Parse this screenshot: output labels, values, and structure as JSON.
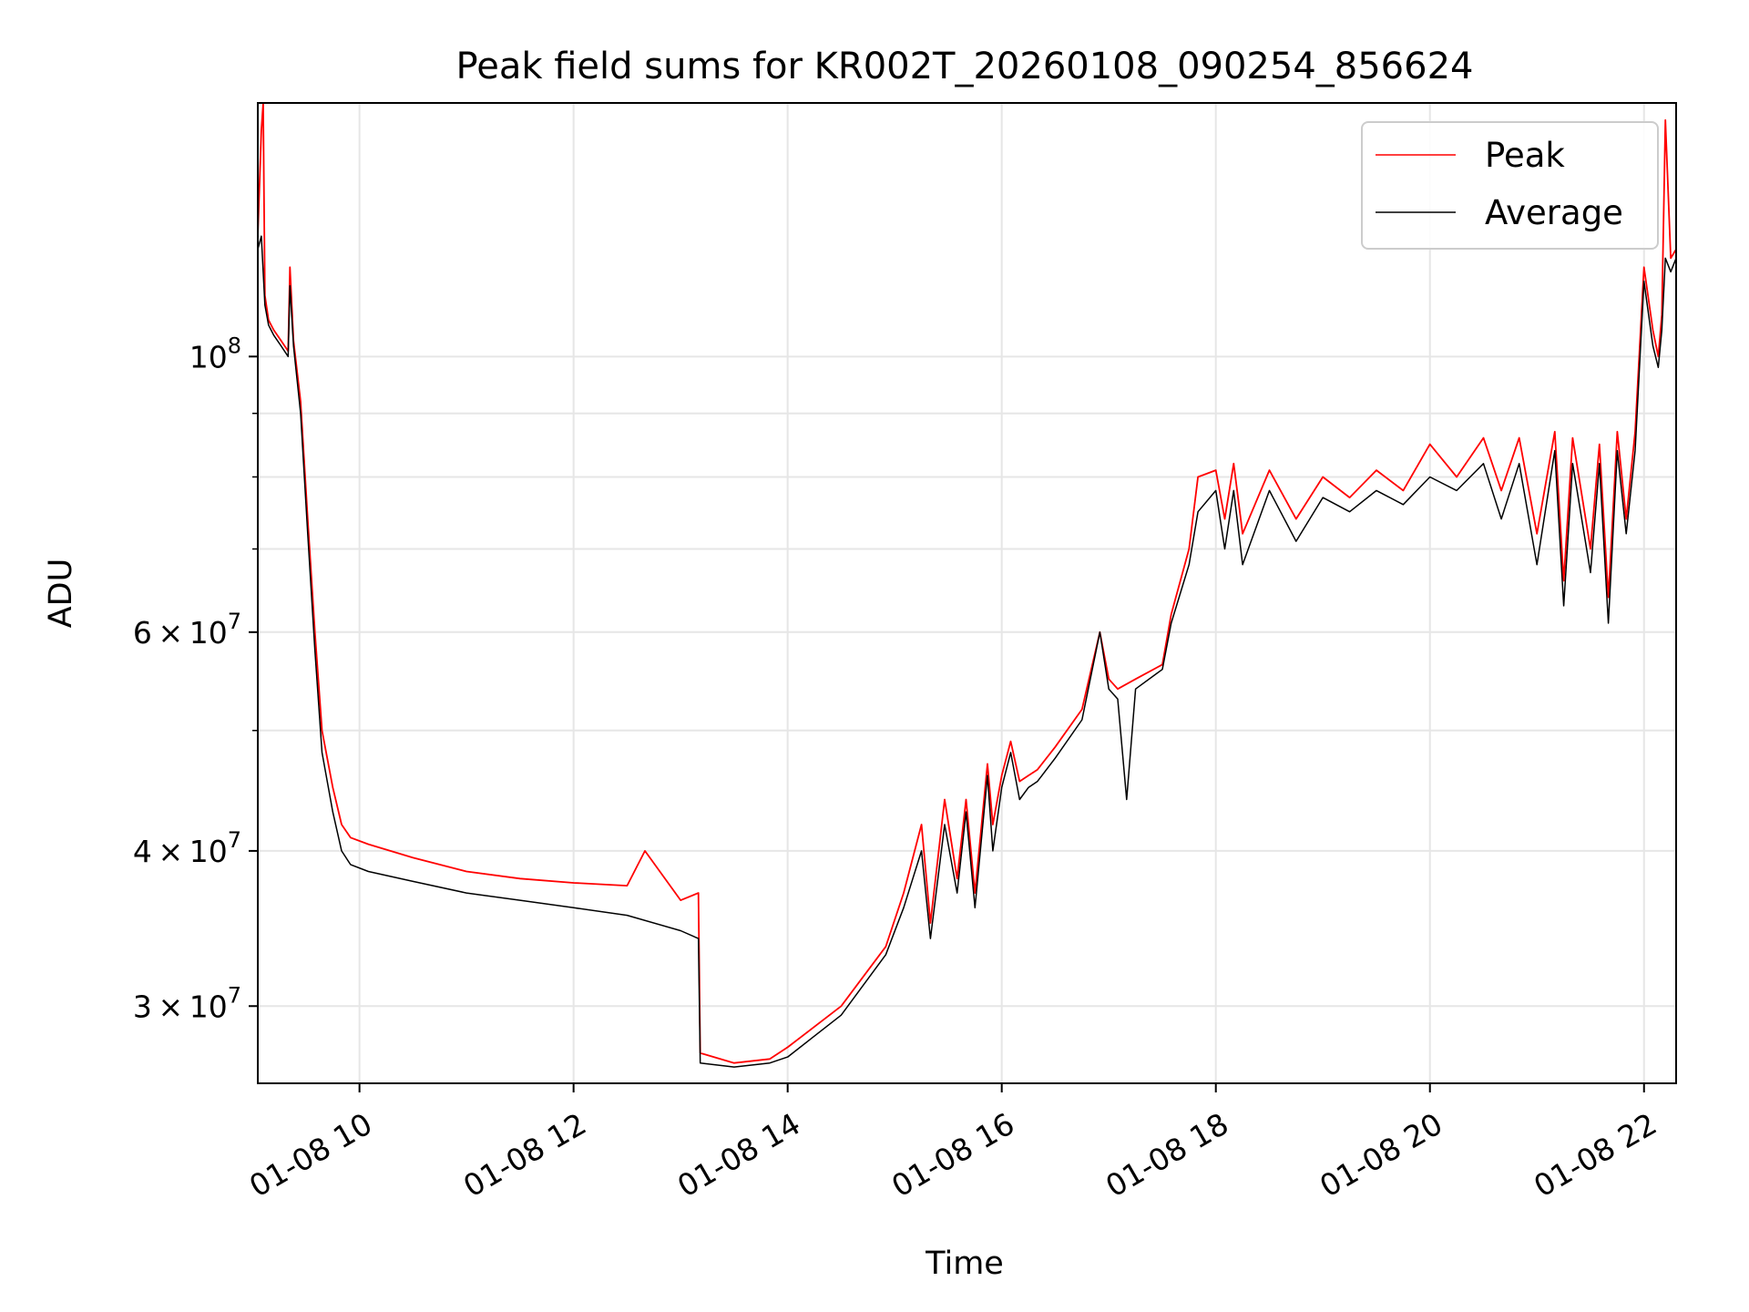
{
  "chart_data": {
    "type": "line",
    "title": "Peak field sums for KR002T_20260108_090254_856624",
    "xlabel": "Time",
    "ylabel": "ADU",
    "y_scale": "log",
    "x_range": [
      "2026-01-08 09:03",
      "2026-01-08 22:18"
    ],
    "ylim": [
      26000000,
      160000000
    ],
    "grid": true,
    "legend_position": "top-right",
    "x_ticks": [
      {
        "value": "2026-01-08 10:00",
        "label": "01-08 10"
      },
      {
        "value": "2026-01-08 12:00",
        "label": "01-08 12"
      },
      {
        "value": "2026-01-08 14:00",
        "label": "01-08 14"
      },
      {
        "value": "2026-01-08 16:00",
        "label": "01-08 16"
      },
      {
        "value": "2026-01-08 18:00",
        "label": "01-08 18"
      },
      {
        "value": "2026-01-08 20:00",
        "label": "01-08 20"
      },
      {
        "value": "2026-01-08 22:00",
        "label": "01-08 22"
      }
    ],
    "y_ticks": [
      {
        "value": 30000000,
        "mantissa": "3",
        "times": "×",
        "base": "10",
        "exp": "7"
      },
      {
        "value": 40000000,
        "mantissa": "4",
        "times": "×",
        "base": "10",
        "exp": "7"
      },
      {
        "value": 60000000,
        "mantissa": "6",
        "times": "×",
        "base": "10",
        "exp": "7"
      },
      {
        "value": 100000000,
        "mantissa": "",
        "times": "",
        "base": "10",
        "exp": "8"
      }
    ],
    "y_minor_ticks": [
      50000000,
      70000000,
      80000000,
      90000000
    ],
    "series": [
      {
        "name": "Peak",
        "color": "#ff0000",
        "x": [
          "2026-01-08 09:03",
          "2026-01-08 09:05",
          "2026-01-08 09:06",
          "2026-01-08 09:07",
          "2026-01-08 09:09",
          "2026-01-08 09:12",
          "2026-01-08 09:16",
          "2026-01-08 09:20",
          "2026-01-08 09:21",
          "2026-01-08 09:23",
          "2026-01-08 09:27",
          "2026-01-08 09:31",
          "2026-01-08 09:35",
          "2026-01-08 09:39",
          "2026-01-08 09:45",
          "2026-01-08 09:50",
          "2026-01-08 09:55",
          "2026-01-08 10:05",
          "2026-01-08 10:30",
          "2026-01-08 11:00",
          "2026-01-08 11:30",
          "2026-01-08 12:00",
          "2026-01-08 12:30",
          "2026-01-08 12:40",
          "2026-01-08 13:00",
          "2026-01-08 13:10",
          "2026-01-08 13:11",
          "2026-01-08 13:30",
          "2026-01-08 13:50",
          "2026-01-08 14:00",
          "2026-01-08 14:30",
          "2026-01-08 14:55",
          "2026-01-08 15:05",
          "2026-01-08 15:15",
          "2026-01-08 15:20",
          "2026-01-08 15:28",
          "2026-01-08 15:35",
          "2026-01-08 15:40",
          "2026-01-08 15:45",
          "2026-01-08 15:52",
          "2026-01-08 15:55",
          "2026-01-08 16:00",
          "2026-01-08 16:05",
          "2026-01-08 16:10",
          "2026-01-08 16:15",
          "2026-01-08 16:20",
          "2026-01-08 16:30",
          "2026-01-08 16:45",
          "2026-01-08 16:55",
          "2026-01-08 17:00",
          "2026-01-08 17:05",
          "2026-01-08 17:15",
          "2026-01-08 17:30",
          "2026-01-08 17:35",
          "2026-01-08 17:45",
          "2026-01-08 17:50",
          "2026-01-08 18:00",
          "2026-01-08 18:05",
          "2026-01-08 18:10",
          "2026-01-08 18:15",
          "2026-01-08 18:30",
          "2026-01-08 18:45",
          "2026-01-08 19:00",
          "2026-01-08 19:15",
          "2026-01-08 19:30",
          "2026-01-08 19:45",
          "2026-01-08 20:00",
          "2026-01-08 20:15",
          "2026-01-08 20:30",
          "2026-01-08 20:40",
          "2026-01-08 20:50",
          "2026-01-08 21:00",
          "2026-01-08 21:10",
          "2026-01-08 21:15",
          "2026-01-08 21:20",
          "2026-01-08 21:30",
          "2026-01-08 21:35",
          "2026-01-08 21:40",
          "2026-01-08 21:45",
          "2026-01-08 21:50",
          "2026-01-08 21:55",
          "2026-01-08 22:00",
          "2026-01-08 22:05",
          "2026-01-08 22:08",
          "2026-01-08 22:10",
          "2026-01-08 22:12",
          "2026-01-08 22:15",
          "2026-01-08 22:18"
        ],
        "y": [
          125000000,
          152000000,
          160000000,
          112000000,
          107000000,
          105000000,
          103000000,
          101000000,
          118000000,
          103000000,
          92000000,
          74000000,
          60000000,
          50000000,
          45000000,
          42000000,
          41000000,
          40500000,
          39500000,
          38500000,
          38000000,
          37700000,
          37500000,
          40000000,
          36500000,
          37000000,
          27500000,
          27000000,
          27200000,
          27800000,
          30000000,
          33500000,
          37000000,
          42000000,
          35000000,
          44000000,
          38000000,
          44000000,
          37000000,
          47000000,
          42000000,
          46000000,
          49000000,
          45500000,
          46000000,
          46500000,
          48500000,
          52000000,
          60000000,
          55000000,
          54000000,
          55000000,
          56500000,
          62000000,
          70000000,
          80000000,
          81000000,
          74000000,
          82000000,
          72000000,
          81000000,
          74000000,
          80000000,
          77000000,
          81000000,
          78000000,
          85000000,
          80000000,
          86000000,
          78000000,
          86000000,
          72000000,
          87000000,
          66000000,
          86000000,
          70000000,
          85000000,
          64000000,
          87000000,
          74000000,
          87000000,
          118000000,
          105000000,
          100000000,
          108000000,
          155000000,
          120000000,
          122000000
        ]
      },
      {
        "name": "Average",
        "color": "#000000",
        "x": [
          "2026-01-08 09:03",
          "2026-01-08 09:05",
          "2026-01-08 09:07",
          "2026-01-08 09:09",
          "2026-01-08 09:12",
          "2026-01-08 09:16",
          "2026-01-08 09:20",
          "2026-01-08 09:21",
          "2026-01-08 09:23",
          "2026-01-08 09:27",
          "2026-01-08 09:31",
          "2026-01-08 09:35",
          "2026-01-08 09:39",
          "2026-01-08 09:45",
          "2026-01-08 09:50",
          "2026-01-08 09:55",
          "2026-01-08 10:05",
          "2026-01-08 10:30",
          "2026-01-08 11:00",
          "2026-01-08 11:30",
          "2026-01-08 12:00",
          "2026-01-08 12:30",
          "2026-01-08 13:00",
          "2026-01-08 13:10",
          "2026-01-08 13:11",
          "2026-01-08 13:30",
          "2026-01-08 13:50",
          "2026-01-08 14:00",
          "2026-01-08 14:30",
          "2026-01-08 14:55",
          "2026-01-08 15:05",
          "2026-01-08 15:15",
          "2026-01-08 15:20",
          "2026-01-08 15:28",
          "2026-01-08 15:35",
          "2026-01-08 15:40",
          "2026-01-08 15:45",
          "2026-01-08 15:52",
          "2026-01-08 15:55",
          "2026-01-08 16:00",
          "2026-01-08 16:05",
          "2026-01-08 16:10",
          "2026-01-08 16:15",
          "2026-01-08 16:20",
          "2026-01-08 16:30",
          "2026-01-08 16:45",
          "2026-01-08 16:55",
          "2026-01-08 17:00",
          "2026-01-08 17:05",
          "2026-01-08 17:10",
          "2026-01-08 17:15",
          "2026-01-08 17:30",
          "2026-01-08 17:35",
          "2026-01-08 17:45",
          "2026-01-08 17:50",
          "2026-01-08 18:00",
          "2026-01-08 18:05",
          "2026-01-08 18:10",
          "2026-01-08 18:15",
          "2026-01-08 18:30",
          "2026-01-08 18:45",
          "2026-01-08 19:00",
          "2026-01-08 19:15",
          "2026-01-08 19:30",
          "2026-01-08 19:45",
          "2026-01-08 20:00",
          "2026-01-08 20:15",
          "2026-01-08 20:30",
          "2026-01-08 20:40",
          "2026-01-08 20:50",
          "2026-01-08 21:00",
          "2026-01-08 21:10",
          "2026-01-08 21:15",
          "2026-01-08 21:20",
          "2026-01-08 21:30",
          "2026-01-08 21:35",
          "2026-01-08 21:40",
          "2026-01-08 21:45",
          "2026-01-08 21:50",
          "2026-01-08 21:55",
          "2026-01-08 22:00",
          "2026-01-08 22:05",
          "2026-01-08 22:08",
          "2026-01-08 22:10",
          "2026-01-08 22:12",
          "2026-01-08 22:15",
          "2026-01-08 22:18"
        ],
        "y": [
          122000000,
          125000000,
          110000000,
          106000000,
          104000000,
          102000000,
          100000000,
          114000000,
          102000000,
          90000000,
          72000000,
          58000000,
          48000000,
          43000000,
          40000000,
          39000000,
          38500000,
          37800000,
          37000000,
          36500000,
          36000000,
          35500000,
          34500000,
          34000000,
          27000000,
          26800000,
          27000000,
          27300000,
          29500000,
          33000000,
          36000000,
          40000000,
          34000000,
          42000000,
          37000000,
          43000000,
          36000000,
          46000000,
          40000000,
          45000000,
          48000000,
          44000000,
          45000000,
          45500000,
          47500000,
          51000000,
          60000000,
          54000000,
          53000000,
          44000000,
          54000000,
          56000000,
          61000000,
          68000000,
          75000000,
          78000000,
          70000000,
          78000000,
          68000000,
          78000000,
          71000000,
          77000000,
          75000000,
          78000000,
          76000000,
          80000000,
          78000000,
          82000000,
          74000000,
          82000000,
          68000000,
          84000000,
          63000000,
          82000000,
          67000000,
          82000000,
          61000000,
          84000000,
          72000000,
          84000000,
          115000000,
          102000000,
          98000000,
          105000000,
          120000000,
          117000000,
          120000000
        ]
      }
    ]
  }
}
